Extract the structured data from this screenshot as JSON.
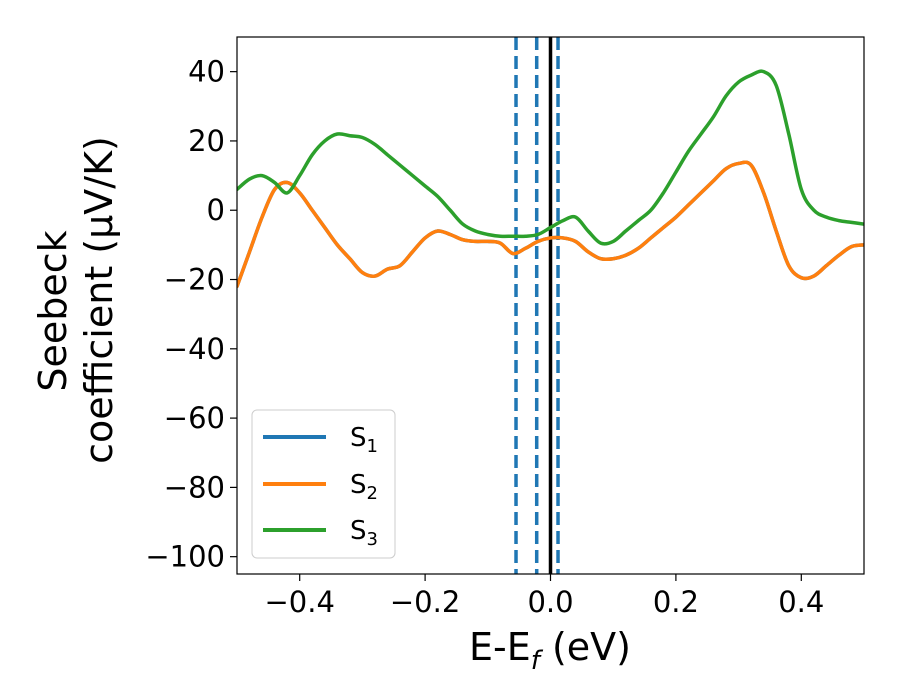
{
  "chart_data": {
    "type": "line",
    "title": "",
    "xlabel": {
      "main": "E-E",
      "sub": "f",
      "unit": " (eV)"
    },
    "ylabel": {
      "line1": "Seebeck",
      "line2": "coefficient  (μV/K)"
    },
    "xlim": [
      -0.5,
      0.5
    ],
    "ylim": [
      -105,
      50
    ],
    "xticks": [
      -0.4,
      -0.2,
      0.0,
      0.2,
      0.4
    ],
    "xtick_labels": [
      "−0.4",
      "−0.2",
      "0.0",
      "0.2",
      "0.4"
    ],
    "yticks": [
      40,
      20,
      0,
      -20,
      -40,
      -60,
      -80,
      -100
    ],
    "ytick_labels": [
      "40",
      "20",
      "0",
      "−20",
      "−40",
      "−60",
      "−80",
      "−100"
    ],
    "grid": false,
    "legend_position": "lower-left",
    "vlines": [
      {
        "x": -0.055,
        "style": "dashed",
        "color": "#1f77b4"
      },
      {
        "x": -0.022,
        "style": "dashed",
        "color": "#1f77b4"
      },
      {
        "x": 0.012,
        "style": "dashed",
        "color": "#1f77b4"
      },
      {
        "x": 0.0,
        "style": "solid",
        "color": "#000000"
      }
    ],
    "series": [
      {
        "name": "S1",
        "label_main": "S",
        "label_sub": "1",
        "color": "#1f77b4",
        "x": [
          -0.5,
          -0.48,
          -0.46,
          -0.44,
          -0.42,
          -0.4,
          -0.38,
          -0.36,
          -0.34,
          -0.32,
          -0.3,
          -0.28,
          -0.26,
          -0.24,
          -0.22,
          -0.2,
          -0.18,
          -0.16,
          -0.14,
          -0.12,
          -0.1,
          -0.08,
          -0.06,
          -0.04,
          -0.02,
          0.0,
          0.02,
          0.04,
          0.06,
          0.08,
          0.1,
          0.12,
          0.14,
          0.16,
          0.18,
          0.2,
          0.22,
          0.24,
          0.26,
          0.28,
          0.3,
          0.32,
          0.34,
          0.36,
          0.38,
          0.4,
          0.42,
          0.44,
          0.46,
          0.48,
          0.5
        ],
        "y": [
          -22,
          -12,
          -2,
          6,
          8,
          5,
          0,
          -5,
          -10,
          -14,
          -18,
          -19,
          -17,
          -16,
          -12,
          -8,
          -6,
          -7,
          -8.5,
          -9,
          -9,
          -9.5,
          -12.5,
          -11,
          -9,
          -8,
          -8,
          -9,
          -12,
          -14,
          -14,
          -13,
          -11,
          -8,
          -5,
          -2,
          1.5,
          5,
          8.5,
          12,
          13.5,
          13,
          5,
          -6,
          -16,
          -19.5,
          -19,
          -16,
          -13,
          -10.5,
          -10
        ]
      },
      {
        "name": "S2",
        "label_main": "S",
        "label_sub": "2",
        "color": "#ff7f0e",
        "x": [
          -0.5,
          -0.48,
          -0.46,
          -0.44,
          -0.42,
          -0.4,
          -0.38,
          -0.36,
          -0.34,
          -0.32,
          -0.3,
          -0.28,
          -0.26,
          -0.24,
          -0.22,
          -0.2,
          -0.18,
          -0.16,
          -0.14,
          -0.12,
          -0.1,
          -0.08,
          -0.06,
          -0.04,
          -0.02,
          0.0,
          0.02,
          0.04,
          0.06,
          0.08,
          0.1,
          0.12,
          0.14,
          0.16,
          0.18,
          0.2,
          0.22,
          0.24,
          0.26,
          0.28,
          0.3,
          0.32,
          0.34,
          0.36,
          0.38,
          0.4,
          0.42,
          0.44,
          0.46,
          0.48,
          0.5
        ],
        "y": [
          -22,
          -12,
          -2,
          6,
          8,
          5,
          0,
          -5,
          -10,
          -14,
          -18,
          -19,
          -17,
          -16,
          -12,
          -8,
          -6,
          -7,
          -8.5,
          -9,
          -9,
          -9.5,
          -12.5,
          -11,
          -9,
          -8,
          -8,
          -9,
          -12,
          -14,
          -14,
          -13,
          -11,
          -8,
          -5,
          -2,
          1.5,
          5,
          8.5,
          12,
          13.5,
          13,
          5,
          -6,
          -16,
          -19.5,
          -19,
          -16,
          -13,
          -10.5,
          -10
        ]
      },
      {
        "name": "S3",
        "label_main": "S",
        "label_sub": "3",
        "color": "#2ca02c",
        "x": [
          -0.5,
          -0.48,
          -0.46,
          -0.44,
          -0.42,
          -0.4,
          -0.38,
          -0.36,
          -0.34,
          -0.32,
          -0.3,
          -0.28,
          -0.26,
          -0.24,
          -0.22,
          -0.2,
          -0.18,
          -0.16,
          -0.14,
          -0.12,
          -0.1,
          -0.08,
          -0.06,
          -0.04,
          -0.02,
          0.0,
          0.02,
          0.04,
          0.06,
          0.08,
          0.1,
          0.12,
          0.14,
          0.16,
          0.18,
          0.2,
          0.22,
          0.24,
          0.26,
          0.28,
          0.3,
          0.32,
          0.34,
          0.36,
          0.38,
          0.4,
          0.42,
          0.44,
          0.46,
          0.48,
          0.5
        ],
        "y": [
          6,
          9,
          10,
          8,
          5,
          10,
          16,
          20,
          22,
          21.5,
          21,
          19,
          16,
          13,
          10,
          7,
          4,
          0,
          -4,
          -6,
          -7,
          -7.5,
          -7.5,
          -7.5,
          -7,
          -5,
          -3,
          -2,
          -6,
          -9.5,
          -9,
          -6,
          -3,
          0,
          5,
          11,
          17,
          22,
          27,
          33,
          37,
          39,
          40,
          36,
          22,
          6,
          0,
          -2,
          -3,
          -3.5,
          -4
        ]
      }
    ]
  }
}
